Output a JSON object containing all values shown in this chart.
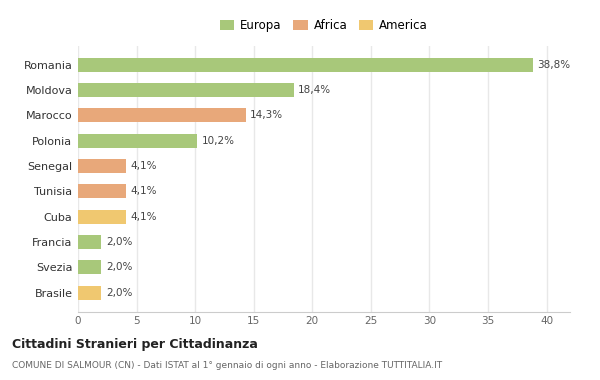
{
  "categories": [
    "Brasile",
    "Svezia",
    "Francia",
    "Cuba",
    "Tunisia",
    "Senegal",
    "Polonia",
    "Marocco",
    "Moldova",
    "Romania"
  ],
  "values": [
    2.0,
    2.0,
    2.0,
    4.1,
    4.1,
    4.1,
    10.2,
    14.3,
    18.4,
    38.8
  ],
  "labels": [
    "2,0%",
    "2,0%",
    "2,0%",
    "4,1%",
    "4,1%",
    "4,1%",
    "10,2%",
    "14,3%",
    "18,4%",
    "38,8%"
  ],
  "colors": [
    "#f0c870",
    "#a8c87a",
    "#a8c87a",
    "#f0c870",
    "#e8a87a",
    "#e8a87a",
    "#a8c87a",
    "#e8a87a",
    "#a8c87a",
    "#a8c87a"
  ],
  "legend": [
    {
      "label": "Europa",
      "color": "#a8c87a"
    },
    {
      "label": "Africa",
      "color": "#e8a87a"
    },
    {
      "label": "America",
      "color": "#f0c870"
    }
  ],
  "title": "Cittadini Stranieri per Cittadinanza",
  "subtitle": "COMUNE DI SALMOUR (CN) - Dati ISTAT al 1° gennaio di ogni anno - Elaborazione TUTTITALIA.IT",
  "xlim": [
    0,
    42
  ],
  "xticks": [
    0,
    5,
    10,
    15,
    20,
    25,
    30,
    35,
    40
  ],
  "background_color": "#ffffff",
  "grid_color": "#e8e8e8",
  "bar_height": 0.55
}
